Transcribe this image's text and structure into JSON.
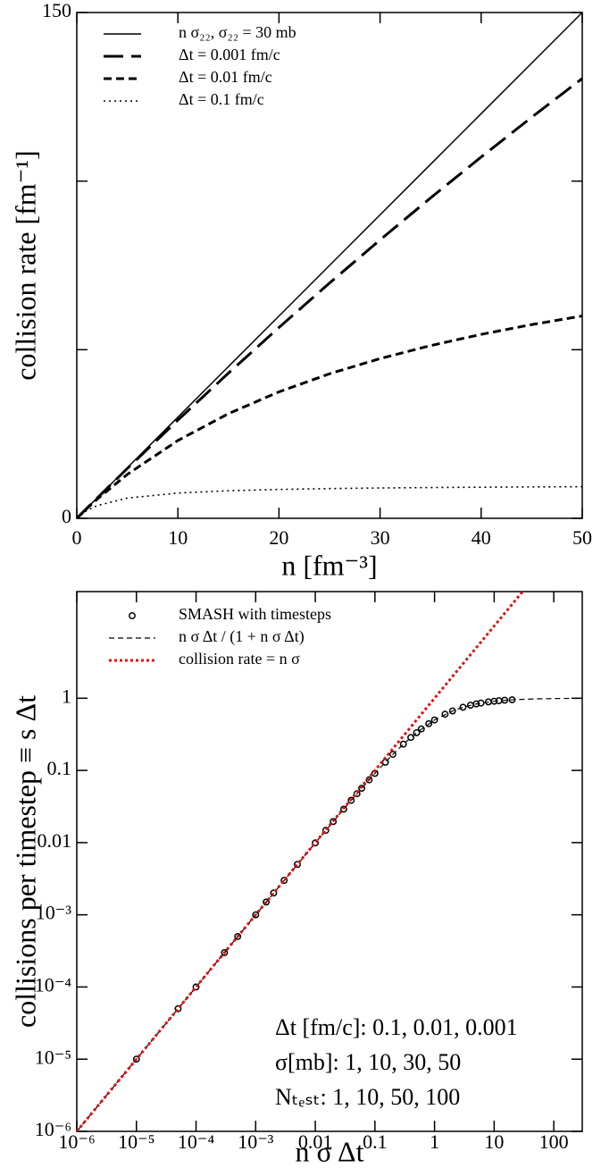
{
  "chart_data": [
    {
      "type": "line",
      "xlabel": "n [fm⁻³]",
      "ylabel": "collision rate [fm⁻¹]",
      "x": [
        0,
        1,
        2,
        5,
        10,
        15,
        20,
        25,
        30,
        35,
        40,
        45,
        50
      ],
      "xlim": [
        0,
        50
      ],
      "ylim": [
        0,
        150
      ],
      "xticks": [
        0,
        10,
        20,
        30,
        40,
        50
      ],
      "yticks": [
        0,
        150
      ],
      "y_minor_ticks": [
        50,
        100
      ],
      "legend": "upper left",
      "series": [
        {
          "name": "n σ₂₂, σ₂₂ = 30 mb",
          "color": "#000000",
          "style": "solid",
          "values": [
            0,
            3,
            6,
            15,
            30,
            45,
            60,
            75,
            90,
            105,
            120,
            135,
            150
          ]
        },
        {
          "name": "Δt = 0.001 fm/c",
          "color": "#000000",
          "style": "long-dash",
          "values": [
            0,
            2.99,
            5.96,
            14.78,
            29.13,
            43.06,
            56.6,
            69.77,
            82.57,
            95.02,
            107.14,
            118.94,
            130.43
          ]
        },
        {
          "name": "Δt = 0.01 fm/c",
          "color": "#000000",
          "style": "dash",
          "values": [
            0,
            2.91,
            5.66,
            13.04,
            23.08,
            31.03,
            37.5,
            42.86,
            47.37,
            51.22,
            54.55,
            57.45,
            60
          ]
        },
        {
          "name": "Δt = 0.1 fm/c",
          "color": "#000000",
          "style": "dotted",
          "values": [
            0,
            2.31,
            3.75,
            6,
            7.5,
            8.18,
            8.57,
            8.82,
            9,
            9.13,
            9.23,
            9.31,
            9.38
          ]
        }
      ]
    },
    {
      "type": "line",
      "xscale": "log",
      "yscale": "log",
      "xlabel": "n σ Δt",
      "ylabel": "collisions per timestep ≡ s Δt",
      "xlim": [
        1e-06,
        300
      ],
      "ylim": [
        1e-06,
        30
      ],
      "xticks": [
        {
          "value": 1e-06,
          "label": "10⁻⁶"
        },
        {
          "value": 1e-05,
          "label": "10⁻⁵"
        },
        {
          "value": 0.0001,
          "label": "10⁻⁴"
        },
        {
          "value": 0.001,
          "label": "10⁻³"
        },
        0.01,
        0.1,
        1,
        10,
        100
      ],
      "yticks": [
        {
          "value": 1e-06,
          "label": "10⁻⁶"
        },
        {
          "value": 1e-05,
          "label": "10⁻⁵"
        },
        {
          "value": 0.0001,
          "label": "10⁻⁴"
        },
        {
          "value": 0.001,
          "label": "10⁻³"
        },
        0.01,
        0.1,
        1
      ],
      "legend": "upper left",
      "series": [
        {
          "name": "SMASH with timesteps",
          "color": "#000000",
          "style": "markers",
          "x": [
            1e-05,
            5e-05,
            0.0001,
            0.0003,
            0.0005,
            0.001,
            0.0015,
            0.002,
            0.003,
            0.005,
            0.01,
            0.015,
            0.02,
            0.03,
            0.04,
            0.05,
            0.06,
            0.08,
            0.1,
            0.15,
            0.2,
            0.3,
            0.4,
            0.5,
            0.6,
            0.8,
            1,
            1.5,
            2,
            3,
            4,
            5,
            6,
            8,
            10,
            12,
            15,
            20
          ],
          "values": [
            1e-05,
            5e-05,
            0.0001,
            0.0003,
            0.0005,
            0.000999,
            0.0015,
            0.002,
            0.00299,
            0.00498,
            0.0099,
            0.0148,
            0.0196,
            0.0291,
            0.0385,
            0.0476,
            0.0566,
            0.0741,
            0.0909,
            0.13,
            0.167,
            0.231,
            0.286,
            0.333,
            0.375,
            0.444,
            0.5,
            0.6,
            0.667,
            0.75,
            0.8,
            0.833,
            0.857,
            0.889,
            0.909,
            0.923,
            0.938,
            0.952
          ]
        },
        {
          "name": "n σ Δt / (1 + n σ Δt)",
          "color": "#000000",
          "style": "dashed",
          "x": [
            1e-06,
            1e-05,
            0.0001,
            0.001,
            0.01,
            0.03,
            0.1,
            0.2,
            0.3,
            0.5,
            1,
            2,
            3,
            5,
            10,
            20,
            50,
            100,
            300
          ],
          "values": [
            1e-06,
            1e-05,
            0.0001,
            0.000999,
            0.0099,
            0.0291,
            0.0909,
            0.167,
            0.231,
            0.333,
            0.5,
            0.667,
            0.75,
            0.833,
            0.909,
            0.952,
            0.98,
            0.99,
            0.997
          ]
        },
        {
          "name": "collision rate = n σ",
          "color": "#e01010",
          "style": "dotted",
          "x": [
            1e-06,
            30
          ],
          "values": [
            1e-06,
            30
          ]
        }
      ],
      "annotations": [
        "Δt [fm/c]: 0.1, 0.01, 0.001",
        "σ[mb]: 1, 10, 30, 50",
        "Nₜₑₛₜ: 1, 10, 50, 100"
      ]
    }
  ]
}
